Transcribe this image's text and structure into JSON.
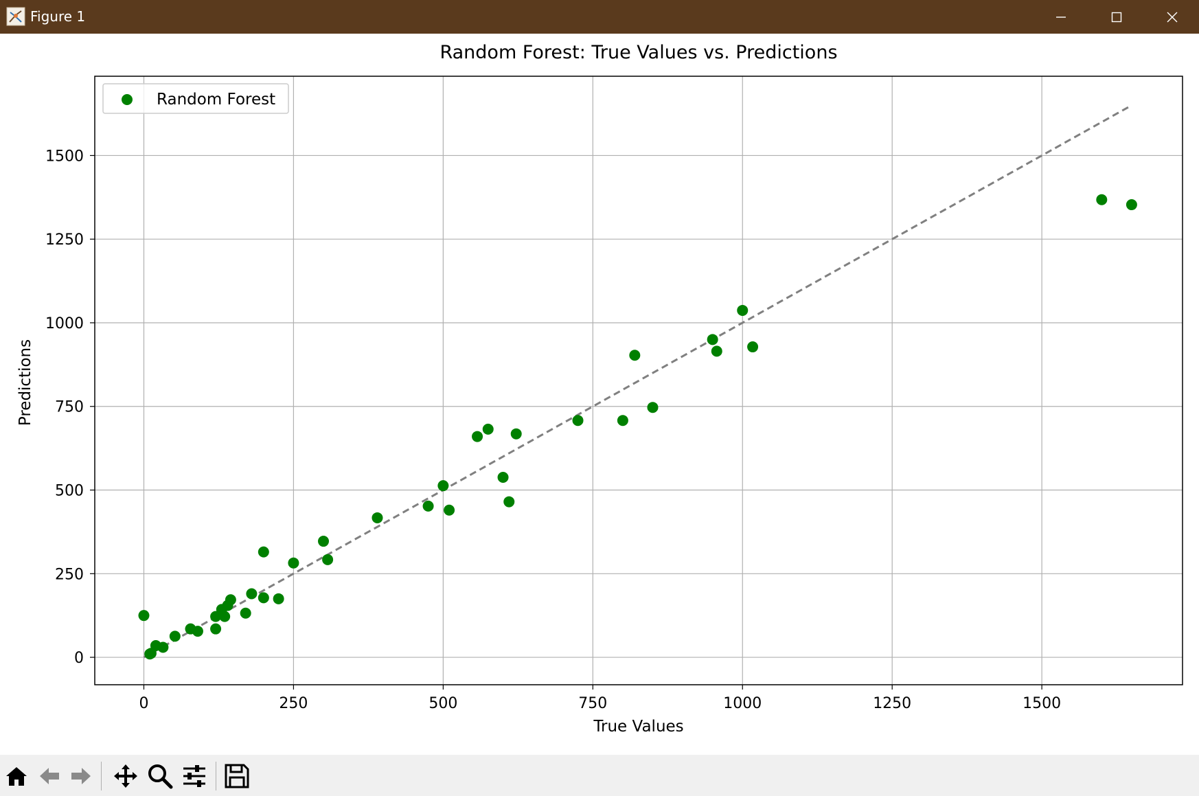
{
  "window": {
    "title": "Figure 1",
    "titlebar_color": "#5a3a1d",
    "controls": [
      "minimize-icon",
      "maximize-icon",
      "close-icon"
    ]
  },
  "toolbar": {
    "buttons": [
      "home-icon",
      "back-icon",
      "forward-icon",
      "pan-icon",
      "zoom-icon",
      "configure-subplots-icon",
      "save-icon"
    ]
  },
  "chart_data": {
    "type": "scatter",
    "title": "Random Forest: True Values vs. Predictions",
    "xlabel": "True Values",
    "ylabel": "Predictions",
    "xlim": [
      -82,
      1735
    ],
    "ylim": [
      -82,
      1737
    ],
    "xticks": [
      0,
      250,
      500,
      750,
      1000,
      1250,
      1500
    ],
    "yticks": [
      0,
      250,
      500,
      750,
      1000,
      1250,
      1500
    ],
    "grid": true,
    "legend": {
      "position": "upper-left",
      "entries": [
        "Random Forest"
      ]
    },
    "marker_color": "#008000",
    "reference_line": {
      "style": "dashed",
      "color": "#808080",
      "from": [
        0,
        0
      ],
      "to": [
        1650,
        1650
      ]
    },
    "series": [
      {
        "name": "Random Forest",
        "points": [
          [
            0,
            125
          ],
          [
            10,
            10
          ],
          [
            12,
            12
          ],
          [
            20,
            35
          ],
          [
            32,
            30
          ],
          [
            52,
            63
          ],
          [
            78,
            85
          ],
          [
            90,
            78
          ],
          [
            120,
            122
          ],
          [
            120,
            85
          ],
          [
            130,
            143
          ],
          [
            135,
            122
          ],
          [
            140,
            155
          ],
          [
            145,
            172
          ],
          [
            170,
            132
          ],
          [
            180,
            190
          ],
          [
            200,
            315
          ],
          [
            200,
            178
          ],
          [
            225,
            175
          ],
          [
            250,
            282
          ],
          [
            300,
            347
          ],
          [
            307,
            292
          ],
          [
            390,
            417
          ],
          [
            475,
            452
          ],
          [
            500,
            513
          ],
          [
            510,
            440
          ],
          [
            557,
            660
          ],
          [
            575,
            682
          ],
          [
            600,
            538
          ],
          [
            610,
            465
          ],
          [
            622,
            668
          ],
          [
            725,
            708
          ],
          [
            800,
            708
          ],
          [
            820,
            903
          ],
          [
            850,
            747
          ],
          [
            950,
            950
          ],
          [
            957,
            915
          ],
          [
            1000,
            1037
          ],
          [
            1017,
            928
          ],
          [
            1600,
            1368
          ],
          [
            1650,
            1353
          ]
        ]
      }
    ]
  }
}
